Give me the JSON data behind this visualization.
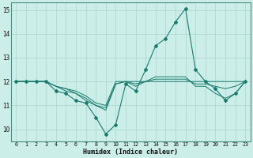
{
  "xlabel": "Humidex (Indice chaleur)",
  "xlim": [
    -0.5,
    23.5
  ],
  "ylim": [
    9.5,
    15.3
  ],
  "xticks": [
    0,
    1,
    2,
    3,
    4,
    5,
    6,
    7,
    8,
    9,
    10,
    11,
    12,
    13,
    14,
    15,
    16,
    17,
    18,
    19,
    20,
    21,
    22,
    23
  ],
  "yticks": [
    10,
    11,
    12,
    13,
    14,
    15
  ],
  "bg_color": "#cceee8",
  "grid_color": "#aad4cc",
  "line_color": "#1a7a6e",
  "lines": [
    [
      12.0,
      12.0,
      12.0,
      12.0,
      11.6,
      11.5,
      11.2,
      11.1,
      10.5,
      9.8,
      10.2,
      11.9,
      11.6,
      12.5,
      13.5,
      13.8,
      14.5,
      15.05,
      12.5,
      12.0,
      11.7,
      11.2,
      11.5,
      12.0
    ],
    [
      12.0,
      12.0,
      12.0,
      12.0,
      11.8,
      11.6,
      11.5,
      11.2,
      11.0,
      10.8,
      11.9,
      12.0,
      11.9,
      12.0,
      12.2,
      12.2,
      12.2,
      12.2,
      11.8,
      11.8,
      11.5,
      11.3,
      11.5,
      12.0
    ],
    [
      12.0,
      12.0,
      12.0,
      12.0,
      11.8,
      11.7,
      11.6,
      11.4,
      11.1,
      11.0,
      12.0,
      12.0,
      12.0,
      12.0,
      12.0,
      12.0,
      12.0,
      12.0,
      12.0,
      12.0,
      12.0,
      12.0,
      12.0,
      12.0
    ],
    [
      12.0,
      12.0,
      12.0,
      12.0,
      11.8,
      11.7,
      11.5,
      11.3,
      11.0,
      10.9,
      11.9,
      12.0,
      11.8,
      12.0,
      12.1,
      12.1,
      12.1,
      12.1,
      11.9,
      11.9,
      11.8,
      11.7,
      11.8,
      12.0
    ]
  ]
}
